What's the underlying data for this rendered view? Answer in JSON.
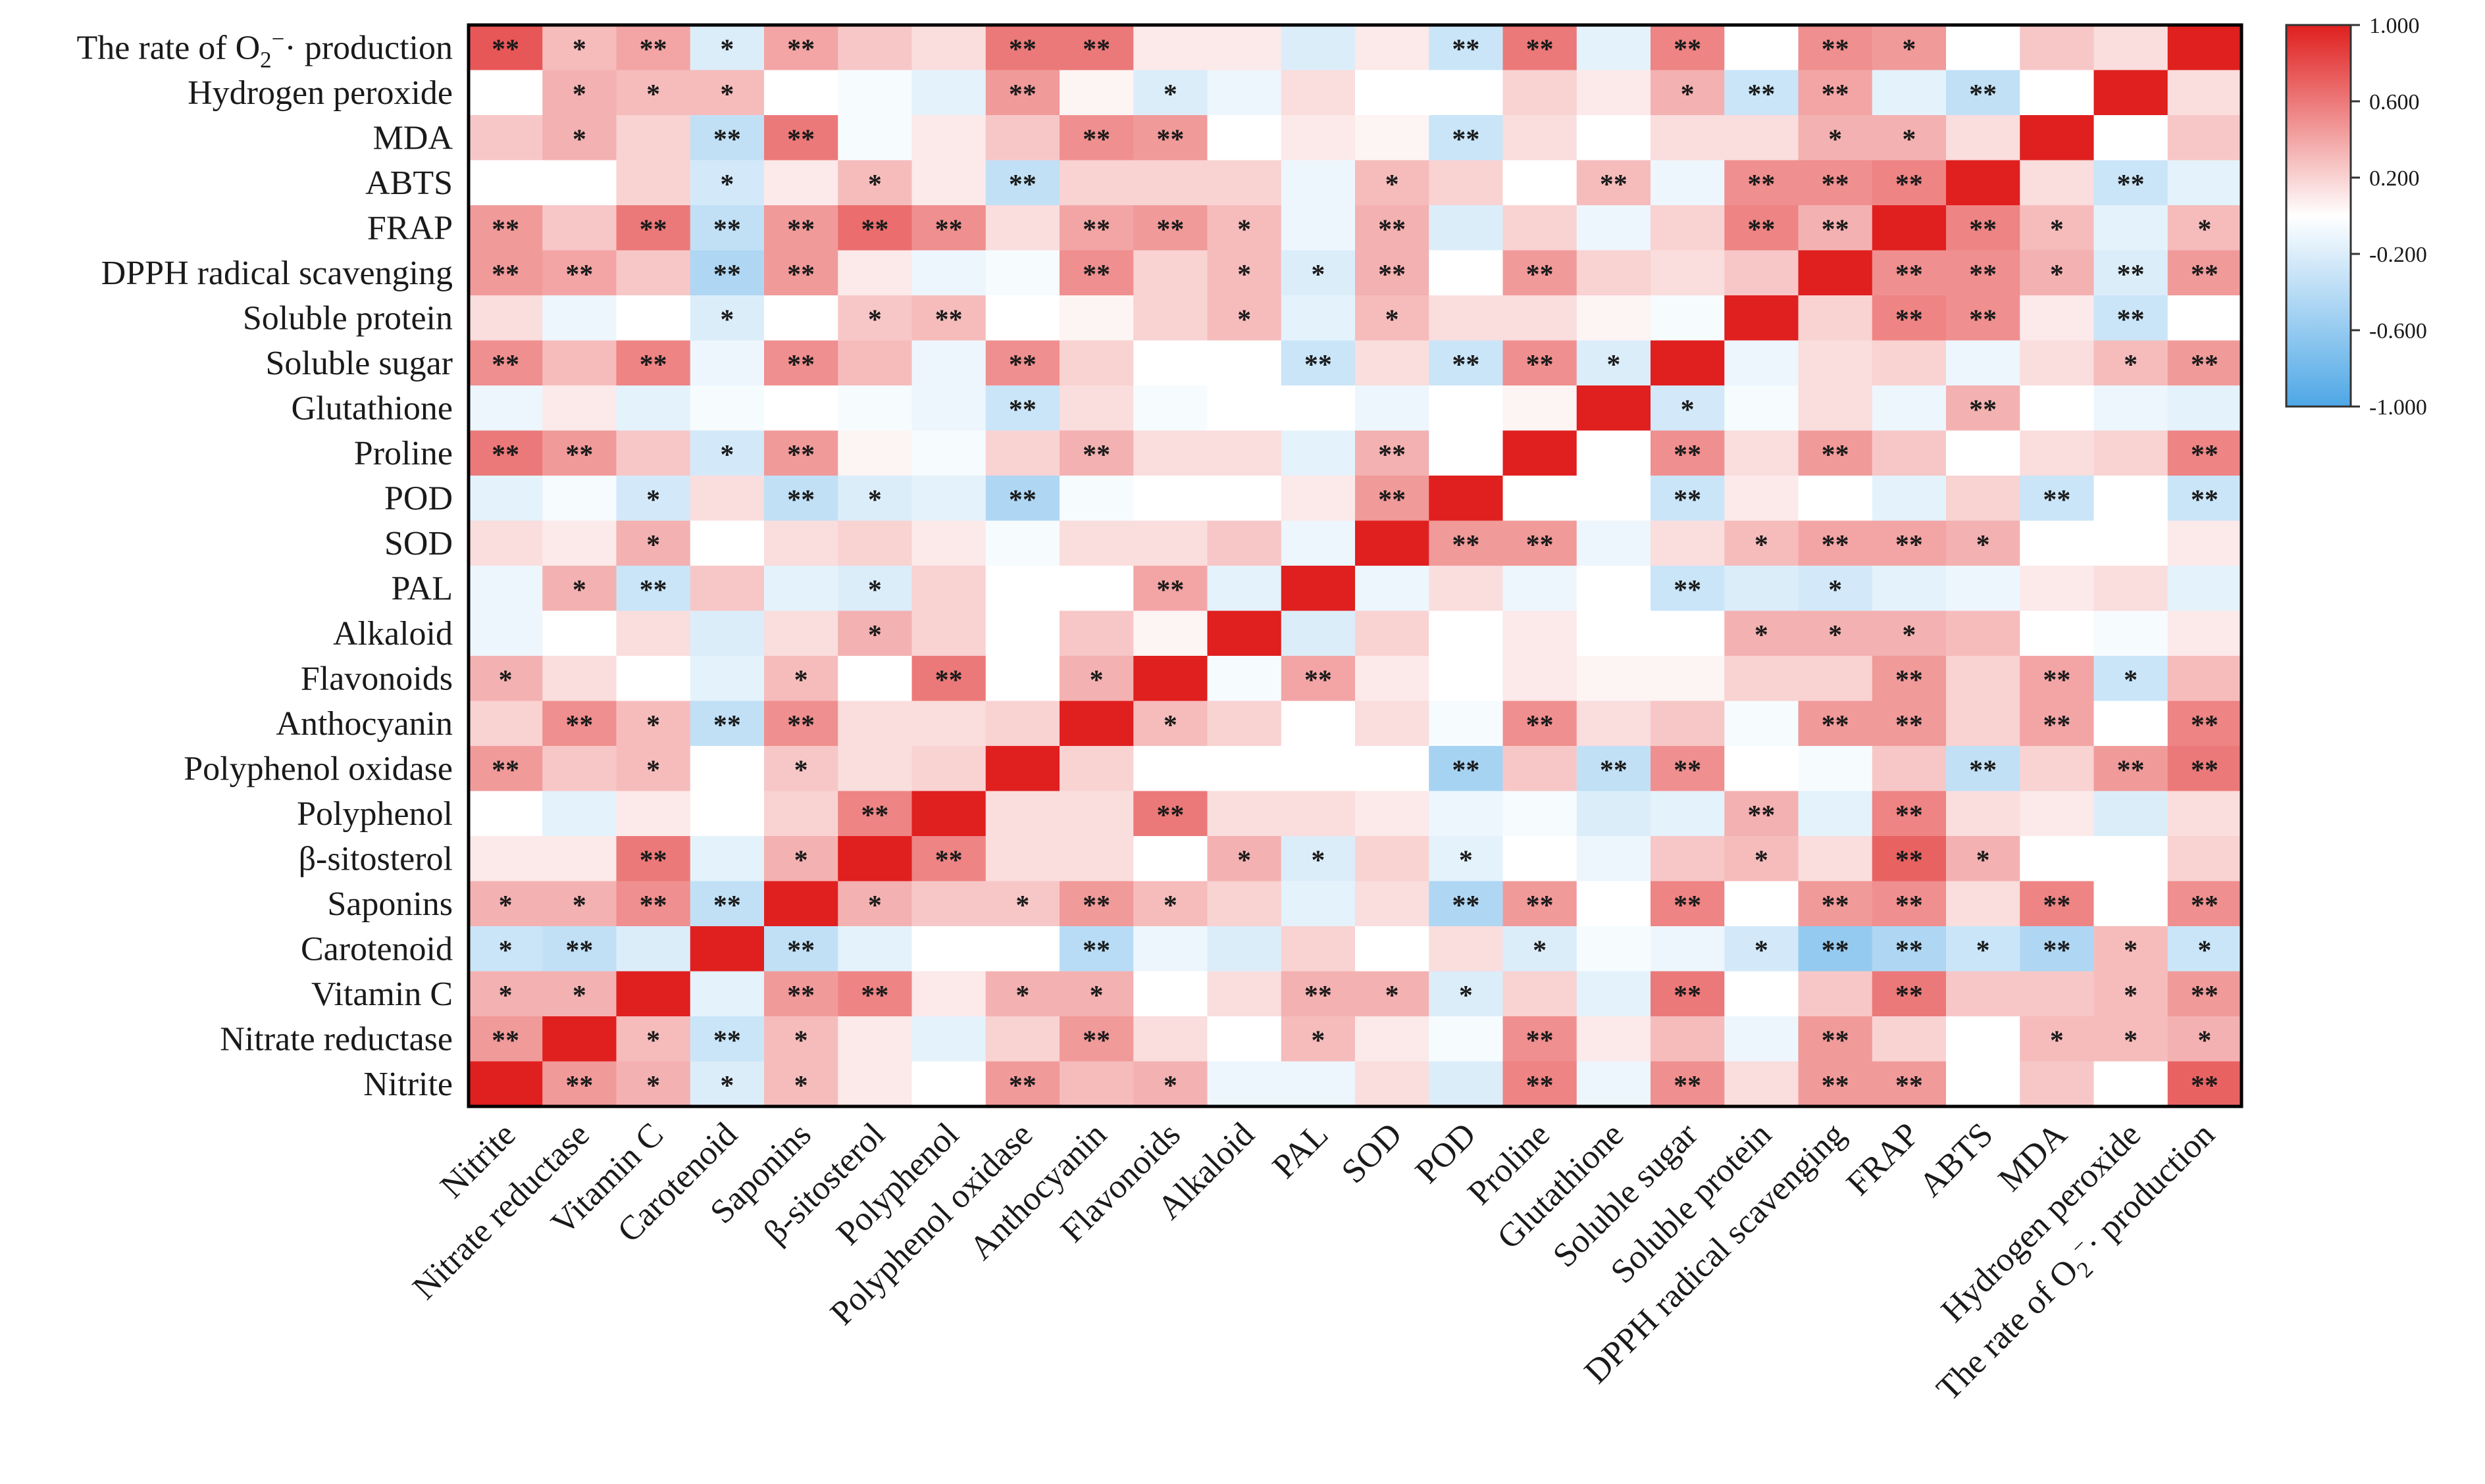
{
  "chart_data": {
    "type": "heatmap",
    "title": "",
    "colorbar": {
      "range": [
        -1,
        1
      ],
      "ticks": [
        "1.000",
        "0.600",
        "0.200",
        "-0.200",
        "-0.600",
        "-1.000"
      ],
      "neg_color": "#4ea7e6",
      "mid_color": "#ffffff",
      "pos_color": "#e01f1f"
    },
    "rows": [
      {
        "pre": "The rate of O",
        "sub": "2",
        "sup": "−",
        "post": "· production"
      },
      {
        "text": "Hydrogen peroxide"
      },
      {
        "text": "MDA"
      },
      {
        "text": "ABTS"
      },
      {
        "text": "FRAP"
      },
      {
        "text": "DPPH radical scavenging"
      },
      {
        "text": "Soluble protein"
      },
      {
        "text": "Soluble sugar"
      },
      {
        "text": "Glutathione"
      },
      {
        "text": "Proline"
      },
      {
        "text": "POD"
      },
      {
        "text": "SOD"
      },
      {
        "text": "PAL"
      },
      {
        "text": "Alkaloid"
      },
      {
        "text": "Flavonoids"
      },
      {
        "text": "Anthocyanin"
      },
      {
        "text": "Polyphenol oxidase"
      },
      {
        "text": "Polyphenol"
      },
      {
        "text": "β-sitosterol"
      },
      {
        "text": "Saponins"
      },
      {
        "text": "Carotenoid"
      },
      {
        "text": "Vitamin C"
      },
      {
        "text": "Nitrate reductase"
      },
      {
        "text": "Nitrite"
      }
    ],
    "columns": [
      {
        "text": "Nitrite"
      },
      {
        "text": "Nitrate reductase"
      },
      {
        "text": "Vitamin C"
      },
      {
        "text": "Carotenoid"
      },
      {
        "text": "Saponins"
      },
      {
        "text": "β-sitosterol"
      },
      {
        "text": "Polyphenol"
      },
      {
        "text": "Polyphenol oxidase"
      },
      {
        "text": "Anthocyanin"
      },
      {
        "text": "Flavonoids"
      },
      {
        "text": "Alkaloid"
      },
      {
        "text": "PAL"
      },
      {
        "text": "SOD"
      },
      {
        "text": "POD"
      },
      {
        "text": "Proline"
      },
      {
        "text": "Glutathione"
      },
      {
        "text": "Soluble sugar"
      },
      {
        "text": "Soluble protein"
      },
      {
        "text": "DPPH radical scavenging"
      },
      {
        "text": "FRAP"
      },
      {
        "text": "ABTS"
      },
      {
        "text": "MDA"
      },
      {
        "text": "Hydrogen peroxide"
      },
      {
        "pre": "The rate of O",
        "sub": "2",
        "sup": "−",
        "post": "· production"
      }
    ],
    "values": [
      [
        0.75,
        0.3,
        0.4,
        -0.2,
        0.4,
        0.25,
        0.15,
        0.6,
        0.6,
        0.1,
        0.1,
        -0.2,
        0.1,
        -0.3,
        0.6,
        -0.15,
        0.55,
        0.0,
        0.5,
        0.45,
        0.0,
        0.25,
        0.15,
        1.0
      ],
      [
        0.0,
        0.35,
        0.3,
        0.3,
        0.0,
        -0.05,
        -0.15,
        0.45,
        0.05,
        -0.2,
        -0.1,
        0.15,
        0.0,
        0.0,
        0.2,
        0.1,
        0.35,
        -0.3,
        0.4,
        -0.15,
        -0.35,
        0.0,
        1.0,
        0.15
      ],
      [
        0.25,
        0.35,
        0.2,
        -0.35,
        0.6,
        -0.05,
        0.1,
        0.25,
        0.5,
        0.45,
        0.0,
        0.1,
        0.05,
        -0.3,
        0.15,
        0.0,
        0.15,
        0.15,
        0.35,
        0.35,
        0.15,
        1.0,
        0.0,
        0.25
      ],
      [
        0.0,
        0.0,
        0.2,
        -0.25,
        0.1,
        0.3,
        0.1,
        -0.35,
        0.2,
        0.2,
        0.2,
        -0.1,
        0.3,
        0.2,
        0.0,
        0.3,
        -0.1,
        0.5,
        0.5,
        0.55,
        1.0,
        0.15,
        -0.3,
        -0.15
      ],
      [
        0.45,
        0.25,
        0.6,
        -0.35,
        0.45,
        0.65,
        0.5,
        0.15,
        0.4,
        0.45,
        0.3,
        -0.1,
        0.35,
        -0.2,
        0.2,
        -0.1,
        0.2,
        0.55,
        0.35,
        1.0,
        0.55,
        0.3,
        -0.15,
        0.3
      ],
      [
        0.45,
        0.4,
        0.25,
        -0.45,
        0.45,
        0.1,
        -0.1,
        -0.05,
        0.5,
        0.2,
        0.3,
        -0.2,
        0.35,
        0.0,
        0.45,
        0.2,
        0.15,
        0.25,
        1.0,
        0.5,
        0.5,
        0.35,
        -0.2,
        0.45
      ],
      [
        0.15,
        -0.1,
        0.0,
        -0.2,
        0.0,
        0.25,
        0.3,
        0.0,
        0.05,
        0.2,
        0.3,
        -0.15,
        0.3,
        0.15,
        0.15,
        0.05,
        -0.05,
        1.0,
        0.2,
        0.55,
        0.5,
        0.1,
        -0.3,
        0.0
      ],
      [
        0.5,
        0.3,
        0.55,
        -0.1,
        0.5,
        0.3,
        -0.1,
        0.5,
        0.2,
        0.0,
        0.0,
        -0.3,
        0.15,
        -0.3,
        0.5,
        -0.2,
        1.0,
        -0.1,
        0.15,
        0.2,
        -0.1,
        0.15,
        0.3,
        0.45
      ],
      [
        -0.1,
        0.1,
        -0.15,
        -0.05,
        0.0,
        -0.05,
        -0.1,
        -0.3,
        0.15,
        -0.05,
        0.0,
        0.0,
        -0.1,
        0.0,
        0.05,
        1.0,
        -0.25,
        -0.05,
        0.15,
        -0.1,
        0.35,
        0.0,
        -0.1,
        -0.15
      ],
      [
        0.6,
        0.45,
        0.25,
        -0.25,
        0.45,
        0.05,
        -0.05,
        0.2,
        0.35,
        0.15,
        0.15,
        -0.15,
        0.35,
        0.0,
        1.0,
        0.0,
        0.5,
        0.15,
        0.45,
        0.25,
        0.0,
        0.15,
        0.2,
        0.55
      ],
      [
        -0.15,
        -0.05,
        -0.25,
        0.15,
        -0.35,
        -0.2,
        -0.15,
        -0.45,
        -0.05,
        0.0,
        0.0,
        0.1,
        0.45,
        1.0,
        0.0,
        0.0,
        -0.3,
        0.1,
        0.0,
        -0.15,
        0.2,
        -0.3,
        0.0,
        -0.3
      ],
      [
        0.15,
        0.1,
        0.35,
        0.0,
        0.15,
        0.2,
        0.1,
        -0.05,
        0.15,
        0.15,
        0.25,
        -0.1,
        1.0,
        0.45,
        0.45,
        -0.1,
        0.15,
        0.3,
        0.4,
        0.4,
        0.35,
        0.0,
        0.0,
        0.1
      ],
      [
        -0.1,
        0.35,
        -0.3,
        0.25,
        -0.15,
        -0.2,
        0.2,
        0.0,
        0.0,
        0.4,
        -0.15,
        1.0,
        -0.1,
        0.15,
        -0.1,
        0.0,
        -0.3,
        -0.2,
        -0.25,
        -0.15,
        -0.1,
        0.1,
        0.15,
        -0.15
      ],
      [
        -0.1,
        0.0,
        0.15,
        -0.2,
        0.15,
        0.35,
        0.2,
        0.0,
        0.25,
        0.05,
        1.0,
        -0.2,
        0.2,
        0.0,
        0.1,
        0.0,
        0.0,
        0.35,
        0.35,
        0.35,
        0.3,
        0.0,
        -0.05,
        0.1
      ],
      [
        0.35,
        0.15,
        0.0,
        -0.15,
        0.3,
        0.0,
        0.6,
        0.0,
        0.35,
        1.0,
        -0.05,
        0.4,
        0.1,
        0.0,
        0.1,
        0.05,
        0.05,
        0.2,
        0.2,
        0.45,
        0.2,
        0.4,
        -0.3,
        0.3
      ],
      [
        0.2,
        0.5,
        0.3,
        -0.35,
        0.5,
        0.15,
        0.15,
        0.2,
        1.0,
        0.3,
        0.2,
        0.0,
        0.15,
        -0.05,
        0.5,
        0.15,
        0.25,
        -0.05,
        0.45,
        0.45,
        0.2,
        0.4,
        0.0,
        0.55
      ],
      [
        0.45,
        0.25,
        0.3,
        0.0,
        0.25,
        0.15,
        0.2,
        1.0,
        0.2,
        0.0,
        0.0,
        0.0,
        0.0,
        -0.5,
        0.25,
        -0.35,
        0.5,
        0.0,
        -0.05,
        0.25,
        -0.35,
        0.2,
        0.45,
        0.6
      ],
      [
        0.0,
        -0.15,
        0.1,
        0.0,
        0.2,
        0.55,
        1.0,
        0.15,
        0.15,
        0.6,
        0.15,
        0.15,
        0.1,
        -0.1,
        -0.05,
        -0.2,
        -0.15,
        0.35,
        -0.15,
        0.55,
        0.15,
        0.1,
        -0.2,
        0.15
      ],
      [
        0.1,
        0.1,
        0.6,
        -0.15,
        0.35,
        1.0,
        0.55,
        0.15,
        0.15,
        0.0,
        0.35,
        -0.2,
        0.2,
        -0.15,
        0.0,
        -0.1,
        0.25,
        0.3,
        0.15,
        0.7,
        0.35,
        0.0,
        0.0,
        0.2
      ],
      [
        0.35,
        0.35,
        0.5,
        -0.35,
        1.0,
        0.35,
        0.25,
        0.25,
        0.45,
        0.3,
        0.2,
        -0.15,
        0.15,
        -0.45,
        0.45,
        0.0,
        0.55,
        0.0,
        0.45,
        0.5,
        0.15,
        0.55,
        0.0,
        0.5
      ],
      [
        -0.3,
        -0.35,
        -0.2,
        1.0,
        -0.35,
        -0.15,
        0.0,
        0.0,
        -0.4,
        -0.1,
        -0.2,
        0.2,
        0.0,
        0.15,
        -0.2,
        -0.05,
        -0.1,
        -0.25,
        -0.6,
        -0.45,
        -0.3,
        -0.45,
        0.3,
        -0.3
      ],
      [
        0.35,
        0.35,
        1.0,
        -0.15,
        0.45,
        0.55,
        0.1,
        0.35,
        0.35,
        0.0,
        0.15,
        0.35,
        0.35,
        -0.2,
        0.2,
        -0.15,
        0.6,
        0.0,
        0.25,
        0.6,
        0.25,
        0.25,
        0.3,
        0.45
      ],
      [
        0.45,
        1.0,
        0.3,
        -0.3,
        0.3,
        0.1,
        -0.15,
        0.2,
        0.45,
        0.15,
        0.0,
        0.3,
        0.1,
        -0.05,
        0.5,
        0.1,
        0.3,
        -0.1,
        0.45,
        0.2,
        0.0,
        0.3,
        0.3,
        0.35
      ],
      [
        1.0,
        0.45,
        0.35,
        -0.2,
        0.3,
        0.1,
        0.0,
        0.45,
        0.3,
        0.35,
        -0.1,
        -0.1,
        0.15,
        -0.2,
        0.55,
        -0.1,
        0.5,
        0.15,
        0.45,
        0.45,
        0.0,
        0.25,
        0.0,
        0.7
      ]
    ],
    "stars": [
      [
        "**",
        "*",
        "**",
        "*",
        "**",
        "",
        "",
        "**",
        "**",
        "",
        "",
        "",
        "",
        "**",
        "**",
        "",
        "**",
        "",
        "**",
        "*",
        "",
        "",
        "",
        ""
      ],
      [
        "",
        "*",
        "*",
        "*",
        "",
        "",
        "",
        "**",
        "",
        "*",
        "",
        "",
        "",
        "",
        "",
        "",
        "*",
        "**",
        "**",
        "",
        "**",
        "",
        "",
        ""
      ],
      [
        "",
        "*",
        "",
        "**",
        "**",
        "",
        "",
        "",
        "**",
        "**",
        "",
        "",
        "",
        "**",
        "",
        "",
        "",
        "",
        "*",
        "*",
        "",
        "",
        "",
        ""
      ],
      [
        "",
        "",
        "",
        "*",
        "",
        "*",
        "",
        "**",
        "",
        "",
        "",
        "",
        "*",
        "",
        "",
        "**",
        "",
        "**",
        "**",
        "**",
        "",
        "",
        "**",
        ""
      ],
      [
        "**",
        "",
        "**",
        "**",
        "**",
        "**",
        "**",
        "",
        "**",
        "**",
        "*",
        "",
        "**",
        "",
        "",
        "",
        "",
        "**",
        "**",
        "",
        "**",
        "*",
        "",
        "*"
      ],
      [
        "**",
        "**",
        "",
        "**",
        "**",
        "",
        "",
        "",
        "**",
        "",
        "*",
        "*",
        "**",
        "",
        "**",
        "",
        "",
        "",
        "",
        "**",
        "**",
        "*",
        "**",
        "**"
      ],
      [
        "",
        "",
        "",
        "*",
        "",
        "*",
        "**",
        "",
        "",
        "",
        "*",
        "",
        "*",
        "",
        "",
        "",
        "",
        "",
        "",
        "**",
        "**",
        "",
        "**",
        ""
      ],
      [
        "**",
        "",
        "**",
        "",
        "**",
        "",
        "",
        "**",
        "",
        "",
        "",
        "**",
        "",
        "**",
        "**",
        "*",
        "",
        "",
        "",
        "",
        "",
        "",
        "*",
        "**"
      ],
      [
        "",
        "",
        "",
        "",
        "",
        "",
        "",
        "**",
        "",
        "",
        "",
        "",
        "",
        "",
        "",
        "",
        "*",
        "",
        "",
        "",
        "**",
        "",
        "",
        ""
      ],
      [
        "**",
        "**",
        "",
        "*",
        "**",
        "",
        "",
        "",
        "**",
        "",
        "",
        "",
        "**",
        "",
        "",
        "",
        "**",
        "",
        "**",
        "",
        "",
        "",
        "",
        "**"
      ],
      [
        "",
        "",
        "*",
        "",
        "**",
        "*",
        "",
        "**",
        "",
        "",
        "",
        "",
        "**",
        "",
        "",
        "",
        "**",
        "",
        "",
        "",
        "",
        "**",
        "",
        "**"
      ],
      [
        "",
        "",
        "*",
        "",
        "",
        "",
        "",
        "",
        "",
        "",
        "",
        "",
        "",
        "**",
        "**",
        "",
        "",
        "*",
        "**",
        "**",
        "*",
        "",
        "",
        ""
      ],
      [
        "",
        "*",
        "**",
        "",
        "",
        "*",
        "",
        "",
        "",
        "**",
        "",
        "",
        "",
        "",
        "",
        "",
        "**",
        "",
        "*",
        "",
        "",
        "",
        "",
        ""
      ],
      [
        "",
        "",
        "",
        "",
        "",
        "*",
        "",
        "",
        "",
        "",
        "",
        "",
        "",
        "",
        "",
        "",
        "",
        "*",
        "*",
        "*",
        "",
        "",
        "",
        ""
      ],
      [
        "*",
        "",
        "",
        "",
        "*",
        "",
        "**",
        "",
        "*",
        "",
        "",
        "**",
        "",
        "",
        "",
        "",
        "",
        "",
        "",
        "**",
        "",
        "**",
        "*",
        ""
      ],
      [
        "",
        "**",
        "*",
        "**",
        "**",
        "",
        "",
        "",
        "",
        "*",
        "",
        "",
        "",
        "",
        "**",
        "",
        "",
        "",
        "**",
        "**",
        "",
        "**",
        "",
        "**"
      ],
      [
        "**",
        "",
        "*",
        "",
        "*",
        "",
        "",
        "",
        "",
        "",
        "",
        "",
        "",
        "**",
        "",
        "**",
        "**",
        "",
        "",
        "",
        "**",
        "",
        "**",
        "**"
      ],
      [
        "",
        "",
        "",
        "",
        "",
        "**",
        "",
        "",
        "",
        "**",
        "",
        "",
        "",
        "",
        "",
        "",
        "",
        "**",
        "",
        "**",
        "",
        "",
        "",
        ""
      ],
      [
        "",
        "",
        "**",
        "",
        "*",
        "",
        "**",
        "",
        "",
        "",
        "*",
        "*",
        "",
        "*",
        "",
        "",
        "",
        "*",
        "",
        "**",
        "*",
        "",
        "",
        ""
      ],
      [
        "*",
        "*",
        "**",
        "**",
        "",
        "*",
        "",
        "*",
        "**",
        "*",
        "",
        "",
        "",
        "**",
        "**",
        "",
        "**",
        "",
        "**",
        "**",
        "",
        "**",
        "",
        "**"
      ],
      [
        "*",
        "**",
        "",
        "",
        "**",
        "",
        "",
        "",
        "**",
        "",
        "",
        "",
        "",
        "",
        "*",
        "",
        "",
        "*",
        "**",
        "**",
        "*",
        "**",
        "*",
        "*"
      ],
      [
        "*",
        "*",
        "",
        "",
        "**",
        "**",
        "",
        "*",
        "*",
        "",
        "",
        "**",
        "*",
        "*",
        "",
        "",
        "**",
        "",
        "",
        "**",
        "",
        "",
        "*",
        "**"
      ],
      [
        "**",
        "",
        "*",
        "**",
        "*",
        "",
        "",
        "",
        "**",
        "",
        "",
        "*",
        "",
        "",
        "**",
        "",
        "",
        "",
        "**",
        "",
        "",
        "*",
        "*",
        "*"
      ],
      [
        "",
        "**",
        "*",
        "*",
        "*",
        "",
        "",
        "**",
        "",
        "*",
        "",
        "",
        "",
        "",
        "**",
        "",
        "**",
        "",
        "**",
        "**",
        "",
        "",
        "",
        "**"
      ]
    ]
  }
}
